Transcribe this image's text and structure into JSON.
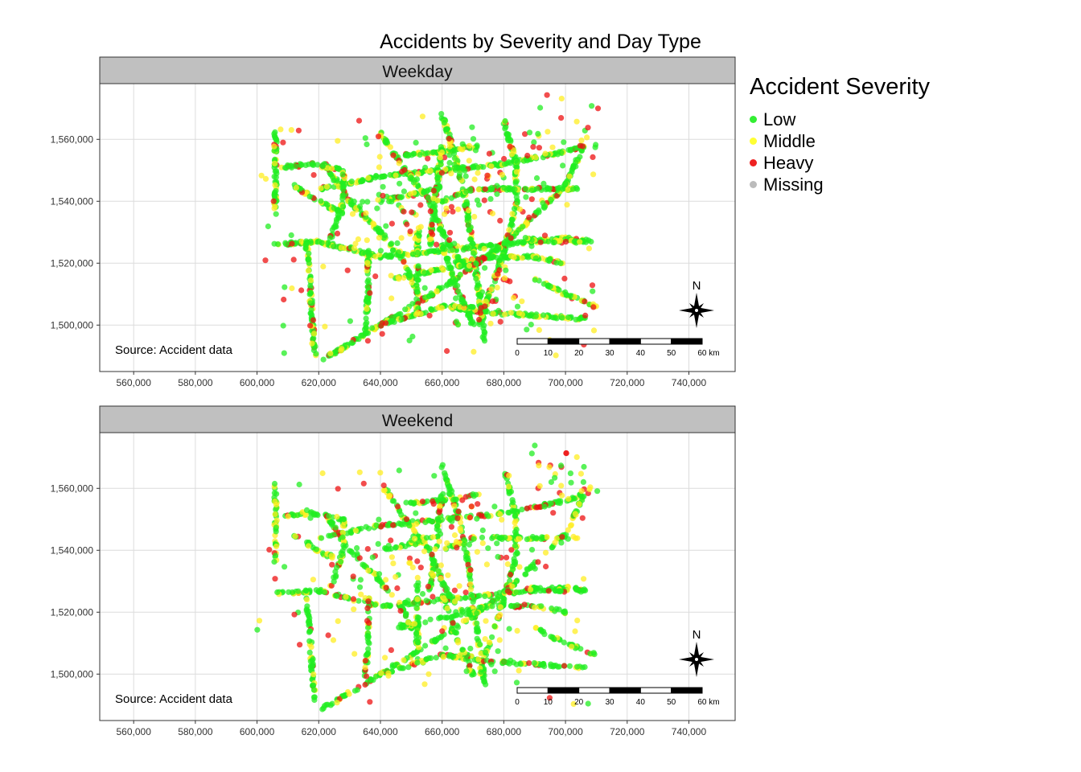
{
  "title": "Accidents by Severity and Day Type",
  "legend": {
    "title": "Accident Severity",
    "items": [
      {
        "label": "Low",
        "color": "#33ee33"
      },
      {
        "label": "Middle",
        "color": "#ffff33"
      },
      {
        "label": "Heavy",
        "color": "#ee2222"
      },
      {
        "label": "Missing",
        "color": "#bbbbbb"
      }
    ]
  },
  "panels": [
    {
      "label": "Weekday",
      "source": "Source: Accident data"
    },
    {
      "label": "Weekend",
      "source": "Source: Accident data"
    }
  ],
  "north_label": "N",
  "scale_bar": {
    "ticks": [
      "0",
      "10",
      "20",
      "30",
      "40",
      "50",
      "60 km"
    ]
  },
  "chart_data": {
    "type": "scatter",
    "facets": [
      "Weekday",
      "Weekend"
    ],
    "x_ticks": [
      560000,
      580000,
      600000,
      620000,
      640000,
      660000,
      680000,
      700000,
      720000,
      740000
    ],
    "y_ticks": [
      1500000,
      1520000,
      1540000,
      1560000
    ],
    "xlim": [
      549000,
      755000
    ],
    "ylim": [
      1485000,
      1578000
    ],
    "series": [
      {
        "name": "Low",
        "color": "#33ee33"
      },
      {
        "name": "Middle",
        "color": "#ffff33"
      },
      {
        "name": "Heavy",
        "color": "#ee2222"
      },
      {
        "name": "Missing",
        "color": "#bbbbbb"
      }
    ],
    "grid": true,
    "legend_position": "right"
  }
}
